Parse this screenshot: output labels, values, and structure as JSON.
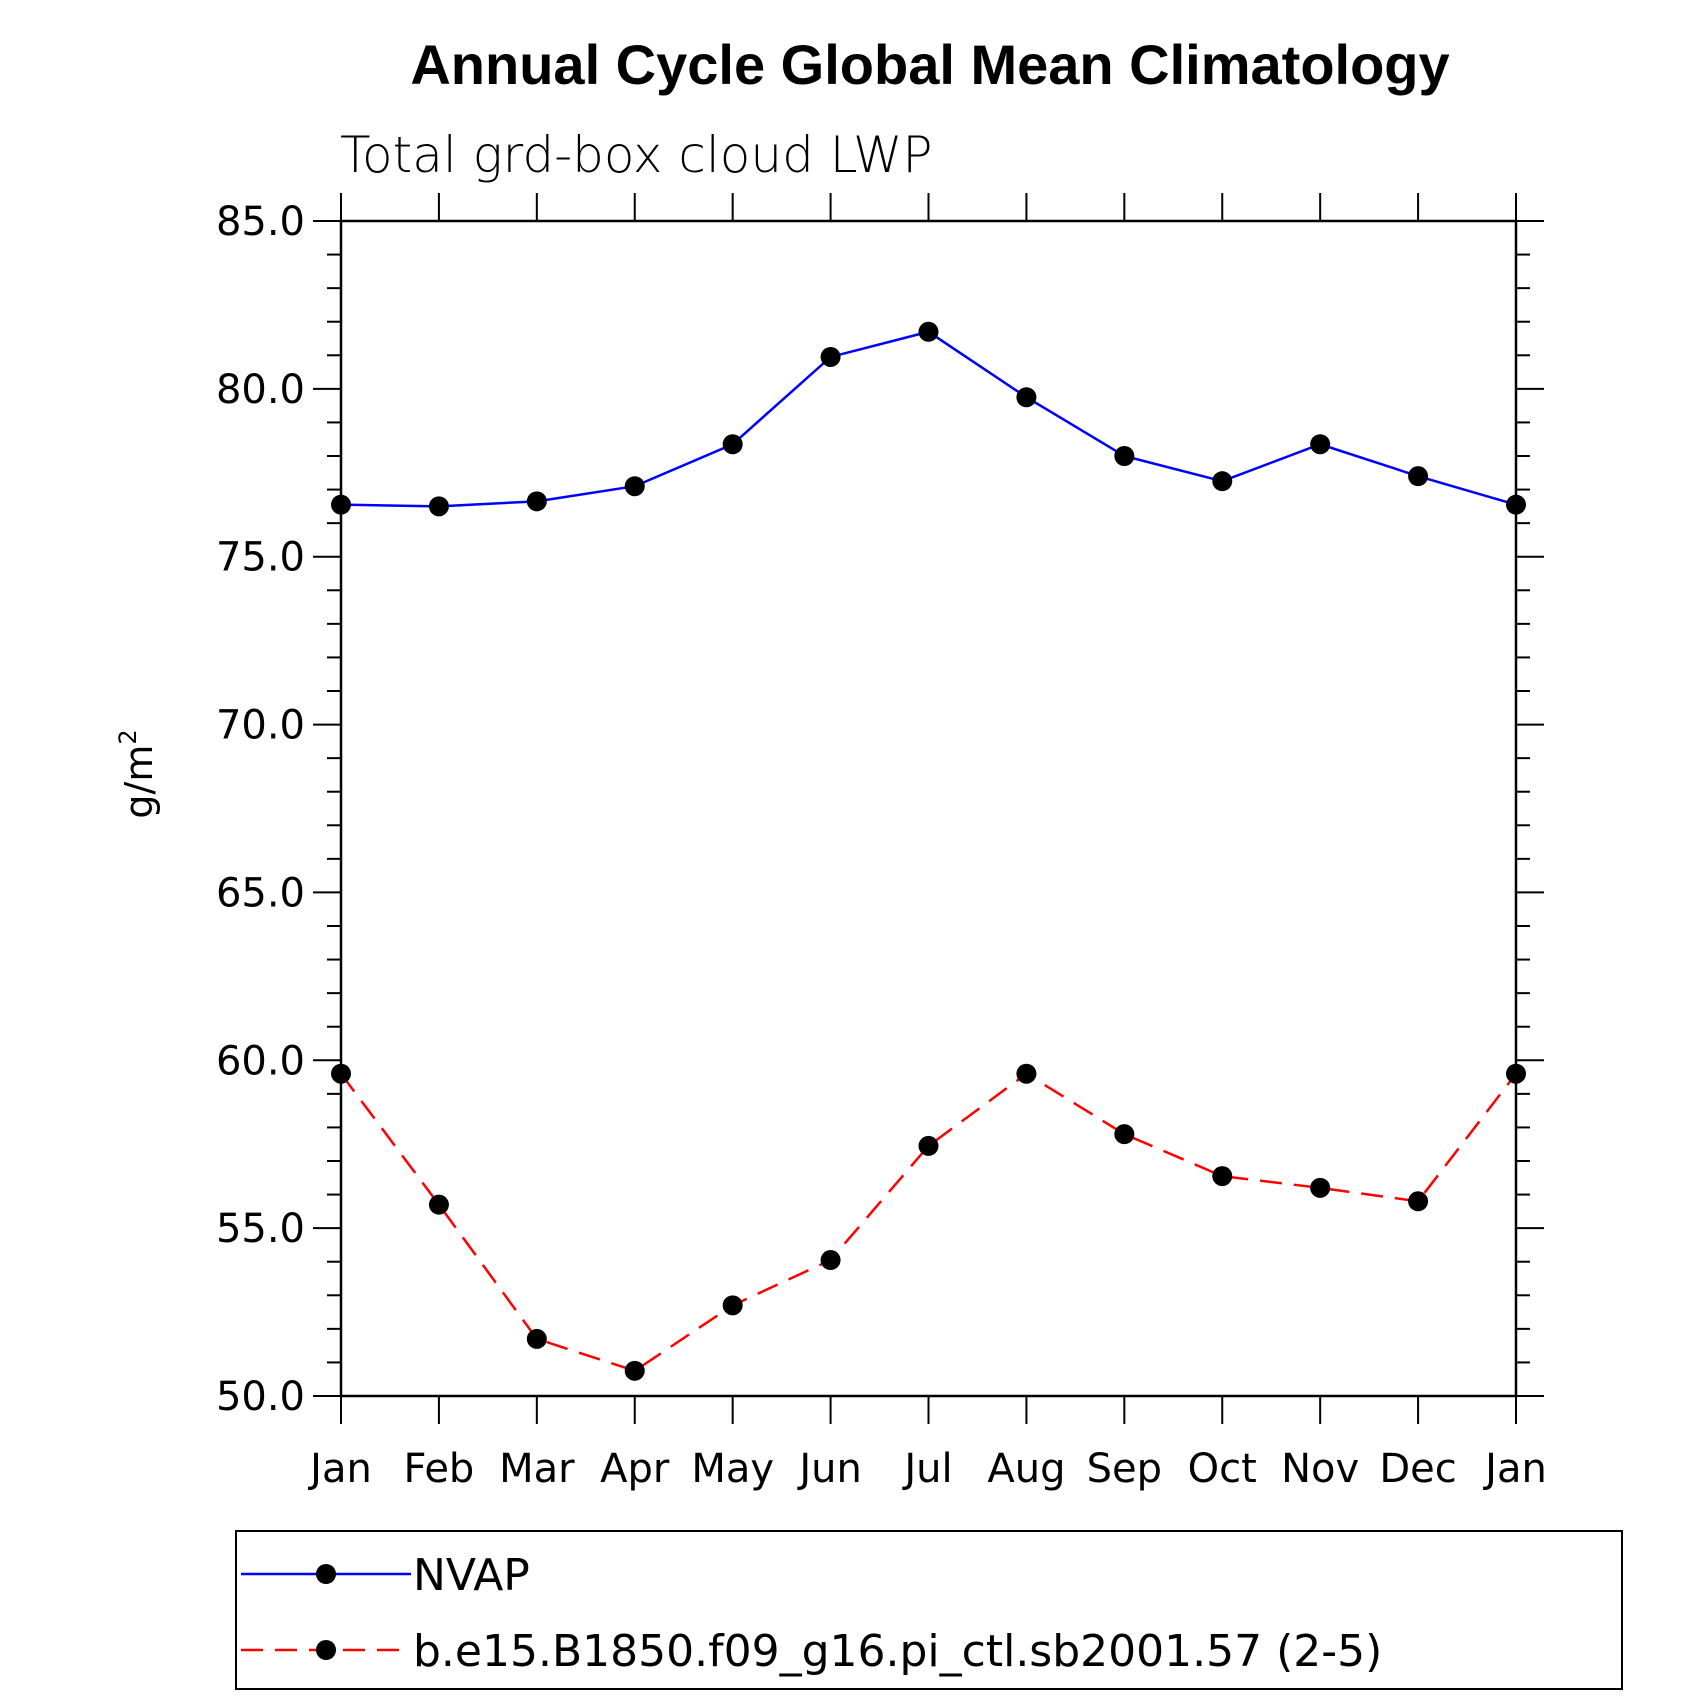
{
  "chart_data": {
    "type": "line",
    "title": "Annual Cycle Global Mean Climatology",
    "subtitle": "Total grd-box cloud LWP",
    "ylabel": "g/m",
    "ylabel_superscript": "2",
    "xlabel": "",
    "categories": [
      "Jan",
      "Feb",
      "Mar",
      "Apr",
      "May",
      "Jun",
      "Jul",
      "Aug",
      "Sep",
      "Oct",
      "Nov",
      "Dec",
      "Jan"
    ],
    "ylim": [
      50.0,
      85.0
    ],
    "yticks": [
      "50.0",
      "55.0",
      "60.0",
      "65.0",
      "70.0",
      "75.0",
      "80.0",
      "85.0"
    ],
    "grid": false,
    "legend_position": "bottom",
    "series": [
      {
        "name": "NVAP",
        "color": "#0000ff",
        "line_style": "solid",
        "marker": "filled-circle",
        "values": [
          76.55,
          76.5,
          76.65,
          77.1,
          78.35,
          80.95,
          81.7,
          79.75,
          78.0,
          77.25,
          78.35,
          77.4,
          76.55
        ]
      },
      {
        "name": "b.e15.B1850.f09_g16.pi_ctl.sb2001.57 (2-5)",
        "color": "#ff0000",
        "line_style": "dashed",
        "marker": "filled-circle",
        "values": [
          59.6,
          55.7,
          51.7,
          50.75,
          52.7,
          54.05,
          57.45,
          59.6,
          57.8,
          56.55,
          56.2,
          55.8,
          59.6
        ]
      }
    ]
  }
}
